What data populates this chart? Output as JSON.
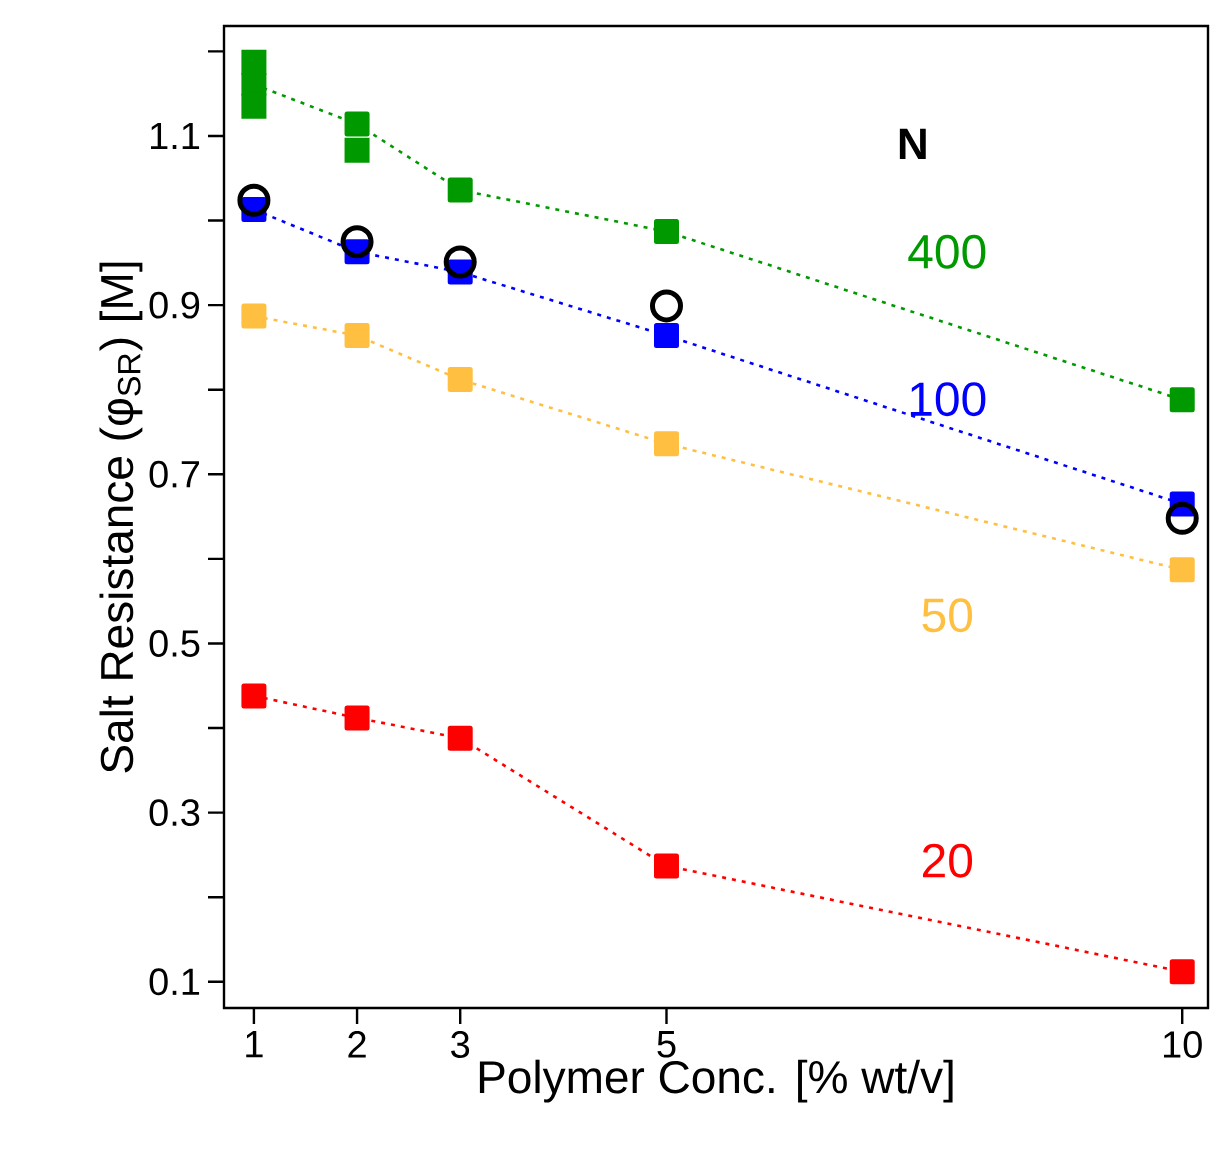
{
  "chart_data": {
    "type": "line",
    "xlabel": "Polymer Conc. [% wt/v]",
    "ylabel": "Salt Resistance (φ$_{SR}$) [M]",
    "legend_title": "N",
    "xlim": [
      0.71,
      10.25
    ],
    "xticks": [
      1,
      2,
      3,
      5,
      10
    ],
    "ylim": [
      0.069,
      1.23
    ],
    "yticks": [
      {
        "value": 0.2,
        "label": null
      },
      {
        "value": 0.4,
        "label": null
      },
      {
        "value": 0.6,
        "label": null
      },
      {
        "value": 0.8,
        "label": null
      },
      {
        "value": 1.0,
        "label": null
      },
      {
        "value": 1.2,
        "label": null
      },
      0.1,
      0.3,
      0.5,
      0.7,
      0.9,
      1.1
    ],
    "marker": "square",
    "line_style": "dotted",
    "series": [
      {
        "name": "400",
        "color": "#009900",
        "x": [
          1,
          2,
          3,
          5,
          10
        ],
        "values": [
          1.161,
          1.114,
          1.036,
          0.987,
          0.788
        ]
      },
      {
        "type": "scatter",
        "color": "#009900",
        "x": [
          1,
          1,
          2
        ],
        "values": [
          1.187,
          1.135,
          1.083
        ]
      },
      {
        "name": "100",
        "color": "#0000ff",
        "x": [
          1,
          2,
          3,
          5,
          10
        ],
        "values": [
          1.013,
          0.963,
          0.939,
          0.864,
          0.665
        ]
      },
      {
        "name": "50",
        "color": "#ffbf40",
        "x": [
          1,
          2,
          3,
          5,
          10
        ],
        "values": [
          0.887,
          0.864,
          0.812,
          0.736,
          0.587
        ]
      },
      {
        "name": "20",
        "color": "#ff0000",
        "x": [
          1,
          2,
          3,
          5,
          10
        ],
        "values": [
          0.438,
          0.412,
          0.388,
          0.237,
          0.112
        ]
      },
      {
        "type": "scatter",
        "marker": "circle",
        "color": "#000000",
        "x": [
          1,
          2,
          3,
          5,
          10
        ],
        "values": [
          1.024,
          0.975,
          0.951,
          0.899,
          0.648
        ]
      }
    ]
  }
}
